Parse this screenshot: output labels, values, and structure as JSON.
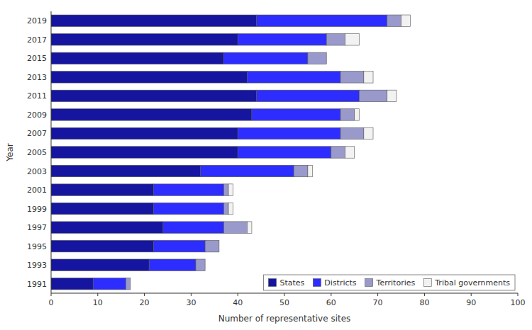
{
  "chart_data": {
    "type": "bar",
    "orientation": "horizontal",
    "stacked": true,
    "xlabel": "Number of representative sites",
    "ylabel": "Year",
    "categories": [
      "2019",
      "2017",
      "2015",
      "2013",
      "2011",
      "2009",
      "2007",
      "2005",
      "2003",
      "2001",
      "1999",
      "1997",
      "1995",
      "1993",
      "1991"
    ],
    "series": [
      {
        "name": "States",
        "color": "#1515a0",
        "values": [
          44,
          40,
          37,
          42,
          44,
          43,
          40,
          40,
          32,
          22,
          22,
          24,
          22,
          21,
          9
        ]
      },
      {
        "name": "Districts",
        "color": "#2d2dff",
        "values": [
          28,
          19,
          18,
          20,
          22,
          19,
          22,
          20,
          20,
          15,
          15,
          13,
          11,
          10,
          7
        ]
      },
      {
        "name": "Territories",
        "color": "#9999cc",
        "values": [
          3,
          4,
          4,
          5,
          6,
          3,
          5,
          3,
          3,
          1,
          1,
          5,
          3,
          2,
          1
        ]
      },
      {
        "name": "Tribal governments",
        "color": "#f2f2f2",
        "values": [
          2,
          3,
          0,
          2,
          2,
          1,
          2,
          2,
          1,
          1,
          1,
          1,
          0,
          0,
          0
        ]
      }
    ],
    "xlim": [
      0,
      100
    ],
    "xticks": [
      0,
      10,
      20,
      30,
      40,
      50,
      60,
      70,
      80,
      90,
      100
    ],
    "grid": false,
    "legend": "lower right"
  }
}
